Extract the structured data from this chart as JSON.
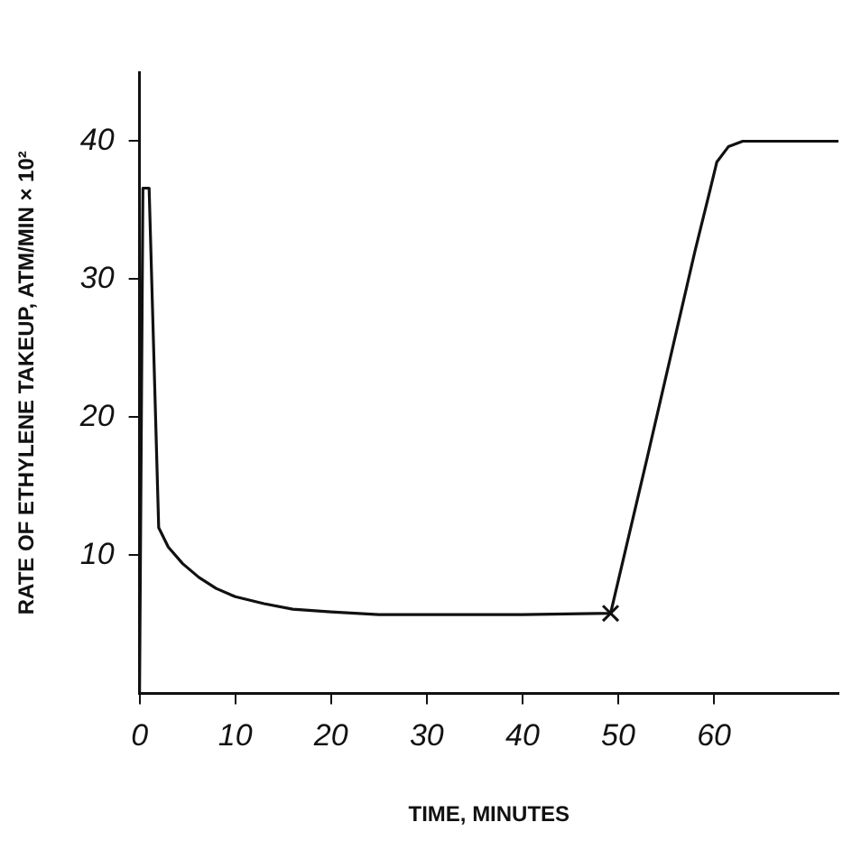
{
  "chart_data": {
    "type": "line",
    "xlabel": "TIME, MINUTES",
    "ylabel": "RATE OF ETHYLENE TAKEUP, ATM/MIN × 10²",
    "xlim": [
      0,
      73
    ],
    "ylim": [
      0,
      45
    ],
    "xticks": [
      0,
      10,
      20,
      30,
      40,
      50,
      60
    ],
    "yticks": [
      10,
      20,
      30,
      40
    ],
    "grid": false,
    "legend": false,
    "marker": "none",
    "line_style": "solid",
    "series": [
      {
        "color": "#111111",
        "x": [
          0,
          0.35,
          0.7,
          1.0,
          2.0,
          3.0,
          4.5,
          6.2,
          8,
          10,
          13,
          16,
          20,
          25,
          30,
          40,
          49.2,
          53,
          56,
          58,
          59.6,
          60.3,
          61.5,
          63,
          66,
          73
        ],
        "values": [
          0,
          36.6,
          36.6,
          36.6,
          12,
          10.6,
          9.4,
          8.4,
          7.6,
          7.0,
          6.5,
          6.1,
          5.9,
          5.7,
          5.7,
          5.7,
          5.8,
          17,
          26,
          32,
          36.5,
          38.5,
          39.6,
          40,
          40,
          40
        ]
      },
      {
        "type": "scatter",
        "marker": "cross",
        "color": "#111111",
        "x": [
          49.2
        ],
        "values": [
          5.8
        ]
      }
    ]
  }
}
